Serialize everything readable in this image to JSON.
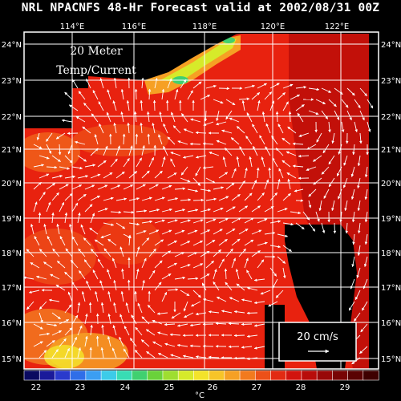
{
  "title": "NRL NPACNFS 48-Hr Forecast valid at 2002/08/31 00Z",
  "panel_label": {
    "line1": "20 Meter",
    "line2": "Temp/Current"
  },
  "longitude_labels": [
    "114°E",
    "116°E",
    "118°E",
    "120°E",
    "122°E"
  ],
  "latitude_labels": [
    "24°N",
    "23°N",
    "22°N",
    "21°N",
    "20°N",
    "19°N",
    "18°N",
    "17°N",
    "16°N",
    "15°N"
  ],
  "scale_vector": {
    "label": "20 cm/s"
  },
  "colorbar": {
    "tick_labels": [
      "22",
      "23",
      "24",
      "25",
      "26",
      "27",
      "28",
      "29"
    ],
    "unit": "°C",
    "colors": [
      "#0a0a60",
      "#1a1a9a",
      "#2a3acc",
      "#2f6ee8",
      "#3b9ef2",
      "#3ccbe8",
      "#38dcb4",
      "#40d070",
      "#6ad23a",
      "#9ede30",
      "#d6ea2a",
      "#f3e32a",
      "#f7c428",
      "#f6a024",
      "#f27a1e",
      "#ec5018",
      "#e22a12",
      "#d2140e",
      "#b80c0a",
      "#980808",
      "#780404",
      "#5a0202",
      "#3e0000"
    ]
  }
}
